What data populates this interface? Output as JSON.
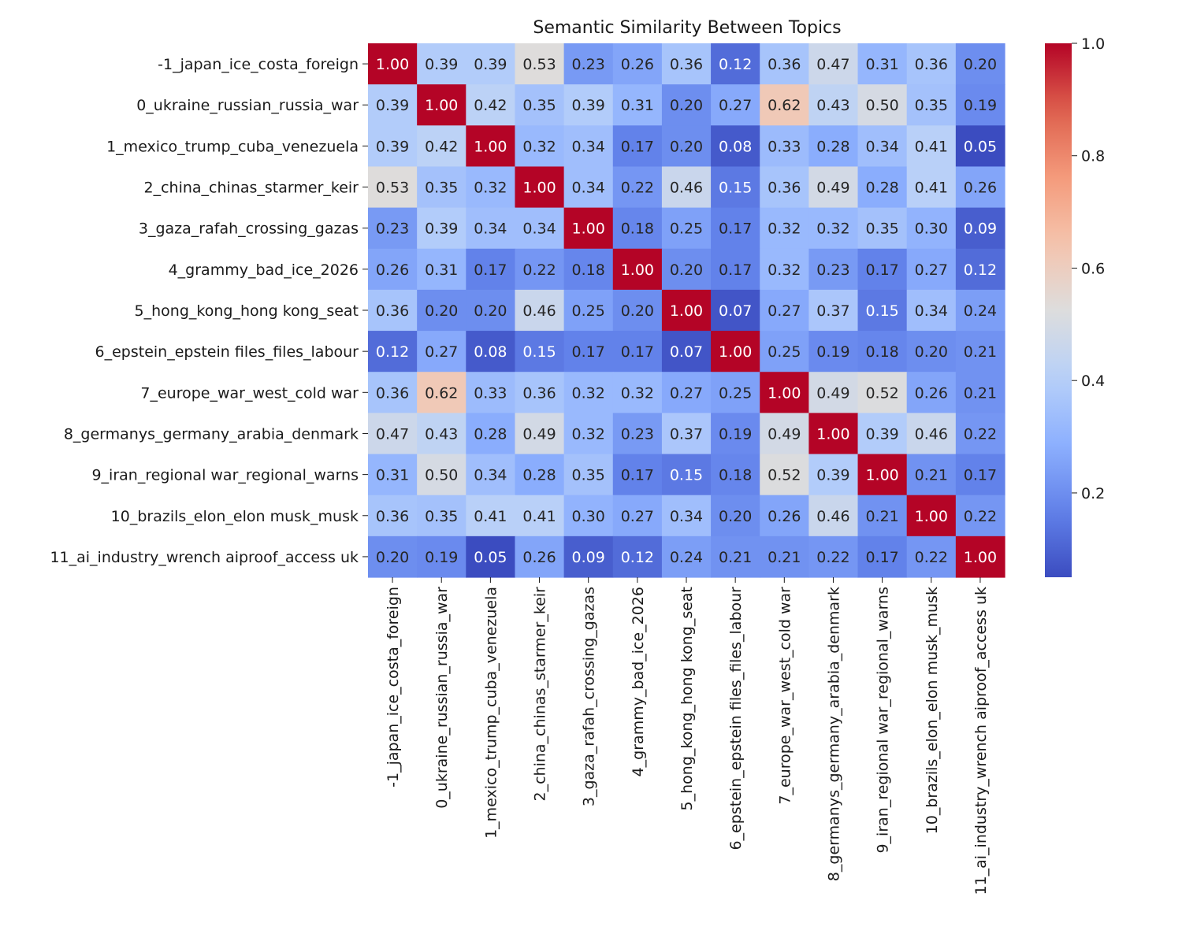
{
  "chart_data": {
    "type": "heatmap",
    "title": "Semantic Similarity Between Topics",
    "xlabel": "",
    "ylabel": "",
    "row_labels": [
      "-1_japan_ice_costa_foreign",
      "0_ukraine_russian_russia_war",
      "1_mexico_trump_cuba_venezuela",
      "2_china_chinas_starmer_keir",
      "3_gaza_rafah_crossing_gazas",
      "4_grammy_bad_ice_2026",
      "5_hong_kong_hong kong_seat",
      "6_epstein_epstein files_files_labour",
      "7_europe_war_west_cold war",
      "8_germanys_germany_arabia_denmark",
      "9_iran_regional war_regional_warns",
      "10_brazils_elon_elon musk_musk",
      "11_ai_industry_wrench aiproof_access uk"
    ],
    "col_labels": [
      "-1_japan_ice_costa_foreign",
      "0_ukraine_russian_russia_war",
      "1_mexico_trump_cuba_venezuela",
      "2_china_chinas_starmer_keir",
      "3_gaza_rafah_crossing_gazas",
      "4_grammy_bad_ice_2026",
      "5_hong_kong_hong kong_seat",
      "6_epstein_epstein files_files_labour",
      "7_europe_war_west_cold war",
      "8_germanys_germany_arabia_denmark",
      "9_iran_regional war_regional_warns",
      "10_brazils_elon_elon musk_musk",
      "11_ai_industry_wrench aiproof_access uk"
    ],
    "values": [
      [
        1.0,
        0.39,
        0.39,
        0.53,
        0.23,
        0.26,
        0.36,
        0.12,
        0.36,
        0.47,
        0.31,
        0.36,
        0.2
      ],
      [
        0.39,
        1.0,
        0.42,
        0.35,
        0.39,
        0.31,
        0.2,
        0.27,
        0.62,
        0.43,
        0.5,
        0.35,
        0.19
      ],
      [
        0.39,
        0.42,
        1.0,
        0.32,
        0.34,
        0.17,
        0.2,
        0.08,
        0.33,
        0.28,
        0.34,
        0.41,
        0.05
      ],
      [
        0.53,
        0.35,
        0.32,
        1.0,
        0.34,
        0.22,
        0.46,
        0.15,
        0.36,
        0.49,
        0.28,
        0.41,
        0.26
      ],
      [
        0.23,
        0.39,
        0.34,
        0.34,
        1.0,
        0.18,
        0.25,
        0.17,
        0.32,
        0.32,
        0.35,
        0.3,
        0.09
      ],
      [
        0.26,
        0.31,
        0.17,
        0.22,
        0.18,
        1.0,
        0.2,
        0.17,
        0.32,
        0.23,
        0.17,
        0.27,
        0.12
      ],
      [
        0.36,
        0.2,
        0.2,
        0.46,
        0.25,
        0.2,
        1.0,
        0.07,
        0.27,
        0.37,
        0.15,
        0.34,
        0.24
      ],
      [
        0.12,
        0.27,
        0.08,
        0.15,
        0.17,
        0.17,
        0.07,
        1.0,
        0.25,
        0.19,
        0.18,
        0.2,
        0.21
      ],
      [
        0.36,
        0.62,
        0.33,
        0.36,
        0.32,
        0.32,
        0.27,
        0.25,
        1.0,
        0.49,
        0.52,
        0.26,
        0.21
      ],
      [
        0.47,
        0.43,
        0.28,
        0.49,
        0.32,
        0.23,
        0.37,
        0.19,
        0.49,
        1.0,
        0.39,
        0.46,
        0.22
      ],
      [
        0.31,
        0.5,
        0.34,
        0.28,
        0.35,
        0.17,
        0.15,
        0.18,
        0.52,
        0.39,
        1.0,
        0.21,
        0.17
      ],
      [
        0.36,
        0.35,
        0.41,
        0.41,
        0.3,
        0.27,
        0.34,
        0.2,
        0.26,
        0.46,
        0.21,
        1.0,
        0.22
      ],
      [
        0.2,
        0.19,
        0.05,
        0.26,
        0.09,
        0.12,
        0.24,
        0.21,
        0.21,
        0.22,
        0.17,
        0.22,
        1.0
      ]
    ],
    "colormap": "coolwarm",
    "vmin": 0.05,
    "vmax": 1.0,
    "colorbar_ticks": [
      0.2,
      0.4,
      0.6,
      0.8,
      1.0
    ],
    "colorbar_tick_labels": [
      "0.2",
      "0.4",
      "0.6",
      "0.8",
      "1.0"
    ],
    "annotation_format": "0.00"
  }
}
